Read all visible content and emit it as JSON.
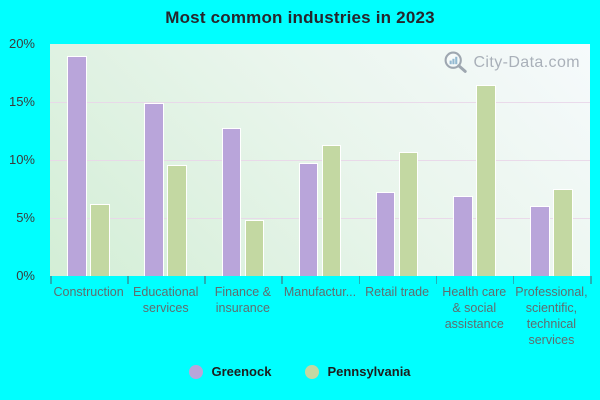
{
  "title": "Most common industries in 2023",
  "watermark": {
    "text": "City-Data.com"
  },
  "legend": {
    "items": [
      {
        "label": "Greenock",
        "color": "#b9a5da"
      },
      {
        "label": "Pennsylvania",
        "color": "#c3d8a2"
      }
    ]
  },
  "chart_data": {
    "type": "bar",
    "title": "Most common industries in 2023",
    "categories": [
      "Construction",
      "Educational\nservices",
      "Finance &\ninsurance",
      "Manufactur...",
      "Retail trade",
      "Health care\n& social\nassistance",
      "Professional,\nscientific,\ntechnical\nservices"
    ],
    "series": [
      {
        "name": "Greenock",
        "color": "#b9a5da",
        "values": [
          19.0,
          14.9,
          12.8,
          9.7,
          7.2,
          6.9,
          6.0
        ]
      },
      {
        "name": "Pennsylvania",
        "color": "#c3d8a2",
        "values": [
          6.2,
          9.6,
          4.8,
          11.3,
          10.7,
          16.5,
          7.5
        ]
      }
    ],
    "xlabel": "",
    "ylabel": "",
    "ylim": [
      0,
      20
    ],
    "y_tick_step": 5,
    "y_tick_labels": [
      "0%",
      "5%",
      "10%",
      "15%",
      "20%"
    ],
    "grid": true,
    "legend_position": "bottom"
  },
  "colors": {
    "background": "#00ffff",
    "plot_gradient_light": "#f6fafc",
    "plot_gradient_green": "#d3eed6",
    "gridline": "#e9d6e9",
    "bar_border": "#ffffff",
    "y_label": "#3b3b3b",
    "x_label": "#5f6d6f",
    "title": "#26262c",
    "watermark": "#a6adb6"
  }
}
